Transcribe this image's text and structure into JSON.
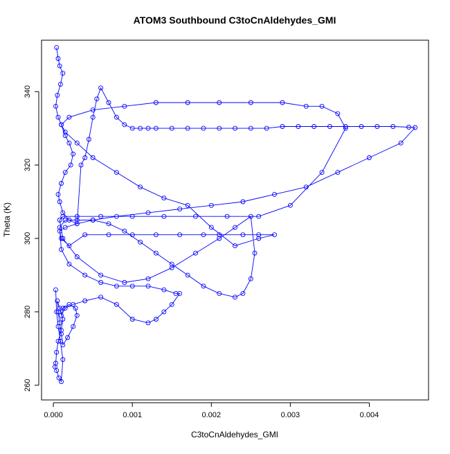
{
  "chart_data": {
    "type": "scatter",
    "title": "ATOM3 Southbound C3toCnAldehydes_GMI",
    "xlabel": "C3toCnAldehydes_GMI",
    "ylabel": "Theta (K)",
    "xlim": [
      -0.00015,
      0.00475
    ],
    "ylim": [
      256,
      354
    ],
    "x_ticks": [
      0.0,
      0.001,
      0.002,
      0.003,
      0.004
    ],
    "x_tick_labels": [
      "0.000",
      "0.001",
      "0.002",
      "0.003",
      "0.004"
    ],
    "y_ticks": [
      260,
      280,
      300,
      320,
      340
    ],
    "y_tick_labels": [
      "260",
      "280",
      "300",
      "320",
      "340"
    ],
    "grid": false,
    "legend": "none",
    "style": "points and connecting lines (type='o')",
    "color": "#0000ff",
    "series": [
      {
        "x": [
          4e-05,
          6e-05,
          8e-05,
          0.00012,
          9e-05,
          5e-05,
          3e-05,
          6e-05,
          0.0001,
          0.00015,
          0.0002,
          0.00025,
          0.00022,
          0.00015,
          0.0001,
          6e-05,
          8e-05,
          0.00012,
          0.0002,
          0.0003,
          0.00035,
          0.0004,
          0.00045,
          0.0005,
          0.00055,
          0.0006,
          0.0007,
          0.0008,
          0.0009,
          0.001,
          0.0011,
          0.0012,
          0.0013,
          0.0015,
          0.0017,
          0.0019,
          0.0021,
          0.0023,
          0.0025,
          0.0027,
          0.0029,
          0.0031,
          0.0033,
          0.0035,
          0.0037,
          0.0039,
          0.0041,
          0.0043,
          0.0045,
          0.00458,
          0.0044,
          0.004,
          0.0036,
          0.0032,
          0.0028,
          0.0024,
          0.002,
          0.0016,
          0.0012,
          0.0008,
          0.0005,
          0.0003,
          0.00015,
          8e-05,
          0.0001,
          0.0002,
          0.0004,
          0.0007,
          0.001,
          0.0013,
          0.0016,
          0.0019,
          0.0021,
          0.0024,
          0.0026,
          0.0028,
          0.0026,
          0.0023,
          0.002,
          0.0017,
          0.0014,
          0.0011,
          0.0008,
          0.0005,
          0.0003,
          0.00015,
          0.0001,
          0.0002,
          0.0005,
          0.0009,
          0.0013,
          0.0017,
          0.0021,
          0.0025,
          0.0029,
          0.0032,
          0.0034,
          0.0036,
          0.0037,
          0.0034,
          0.003,
          0.0026,
          0.0022,
          0.0018,
          0.0014,
          0.001,
          0.0006,
          0.0003,
          0.00012,
          8e-05,
          0.00012,
          0.0003,
          0.0006,
          0.0009,
          0.0012,
          0.0015,
          0.0018,
          0.0021,
          0.0023,
          0.0025,
          0.00255,
          0.0025,
          0.0024,
          0.0023,
          0.0021,
          0.0019,
          0.0017,
          0.0015,
          0.0013,
          0.0011,
          0.0009,
          0.0007,
          0.0005,
          0.0003,
          0.00015,
          8e-05,
          0.0001,
          0.0002,
          0.0004,
          0.0006,
          0.0008,
          0.001,
          0.0012,
          0.0014,
          0.00155,
          0.0016,
          0.0015,
          0.0014,
          0.0013,
          0.0012,
          0.001,
          0.0008,
          0.0006,
          0.0004,
          0.00025,
          0.00015,
          0.0001,
          0.00012,
          0.0002,
          0.00028,
          0.0003,
          0.00025,
          0.00018,
          0.00012,
          0.0001,
          8e-05,
          6e-05,
          5e-05,
          8e-05,
          0.00012,
          0.0001,
          6e-05,
          4e-05,
          3e-05,
          2e-05,
          4e-05,
          7e-05,
          0.0001,
          0.00012,
          9e-05,
          6e-05,
          4e-05,
          3e-05
        ],
        "y": [
          352,
          349,
          347,
          345,
          342,
          339,
          336,
          333,
          331,
          328,
          326,
          323,
          320,
          318,
          315,
          312,
          310,
          307,
          305,
          304,
          320,
          322,
          327,
          333,
          338,
          341,
          337,
          333,
          331,
          330,
          330,
          330,
          330,
          330,
          330,
          330,
          330,
          330,
          330,
          330,
          330.5,
          330.5,
          330.5,
          330.5,
          330.5,
          330.5,
          330.5,
          330.5,
          330.3,
          330.2,
          326,
          322,
          318,
          314,
          312,
          310,
          309,
          308,
          307,
          306,
          305,
          304,
          303,
          302,
          300,
          298,
          301,
          301,
          301,
          301,
          301,
          301,
          301,
          301,
          301,
          301,
          300,
          298,
          303,
          309,
          311,
          314,
          318,
          322,
          326,
          329,
          331,
          333,
          335,
          336,
          337,
          337,
          337,
          337,
          337,
          336,
          336,
          334,
          330,
          318,
          309,
          306,
          306,
          306,
          306,
          306,
          306,
          306,
          306,
          305,
          300,
          295,
          290,
          288,
          289,
          292,
          296,
          300,
          303,
          306,
          296,
          289,
          285,
          284,
          285,
          287,
          290,
          293,
          296,
          299,
          302,
          304,
          305,
          305,
          305,
          303,
          297,
          293,
          290,
          288,
          287,
          287,
          287,
          286,
          285,
          285,
          282,
          280,
          278,
          277,
          278,
          282,
          284,
          283,
          282,
          281,
          279,
          281,
          282,
          281,
          279,
          276,
          273,
          271,
          274,
          277,
          280,
          283,
          281,
          278,
          275,
          272,
          269,
          266,
          265,
          264,
          262,
          261,
          267,
          272,
          276,
          280,
          286
        ]
      }
    ]
  }
}
